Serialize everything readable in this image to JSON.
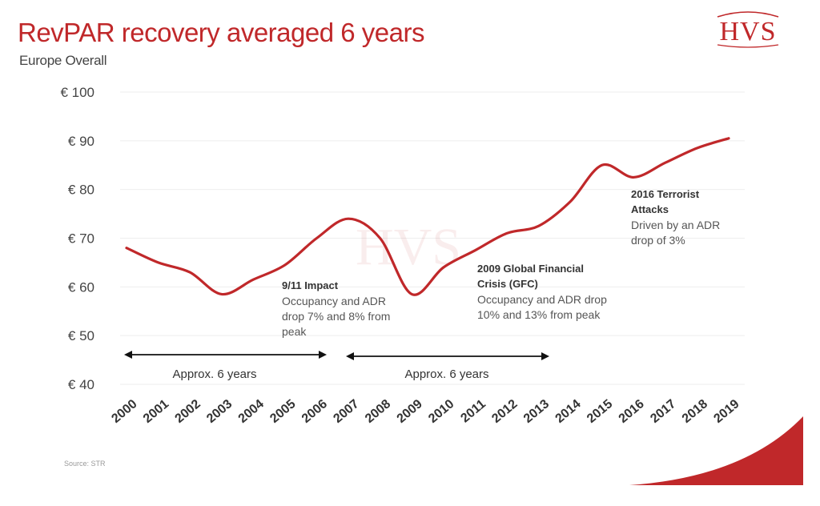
{
  "title": "RevPAR recovery averaged 6 years",
  "subtitle": "Europe Overall",
  "logo_text": "HVS",
  "watermark_text": "HVS",
  "source": "Source: STR",
  "colors": {
    "accent": "#c0282a",
    "line": "#c0282a",
    "grid": "#eeeeee",
    "arrow": "#111111"
  },
  "chart_data": {
    "type": "line",
    "title": "RevPAR recovery averaged 6 years",
    "subtitle": "Europe Overall",
    "xlabel": "",
    "ylabel": "",
    "ylim": [
      40,
      100
    ],
    "yticks": [
      40,
      50,
      60,
      70,
      80,
      90,
      100
    ],
    "ytick_labels": [
      "€ 40",
      "€ 50",
      "€ 60",
      "€ 70",
      "€ 80",
      "€ 90",
      "€ 100"
    ],
    "grid": true,
    "legend": "none",
    "x": [
      "2000",
      "2001",
      "2002",
      "2003",
      "2004",
      "2005",
      "2006",
      "2007",
      "2008",
      "2009",
      "2010",
      "2011",
      "2012",
      "2013",
      "2014",
      "2015",
      "2016",
      "2017",
      "2018",
      "2019"
    ],
    "series": [
      {
        "values": [
          68,
          65,
          63,
          58.5,
          61.5,
          64.5,
          70,
          74,
          70,
          58.5,
          64,
          67.5,
          71,
          72.5,
          77.5,
          85,
          82.5,
          85.5,
          88.5,
          90.5
        ]
      }
    ],
    "annotations": [
      {
        "id": "911",
        "title_lines": [
          "9/11 Impact"
        ],
        "body_lines": [
          "Occupancy and ADR",
          "drop 7% and 8% from",
          "peak"
        ]
      },
      {
        "id": "gfc",
        "title_lines": [
          "2009 Global Financial",
          "Crisis (GFC)"
        ],
        "body_lines": [
          "Occupancy and ADR drop",
          "10% and 13% from peak"
        ]
      },
      {
        "id": "terror",
        "title_lines": [
          "2016 Terrorist",
          "Attacks"
        ],
        "body_lines": [
          "Driven by an ADR",
          "drop of 3%"
        ]
      }
    ],
    "spans": [
      {
        "from": "2000",
        "to": "2006",
        "label": "Approx. 6 years"
      },
      {
        "from": "2007",
        "to": "2013",
        "label": "Approx. 6 years"
      }
    ]
  }
}
